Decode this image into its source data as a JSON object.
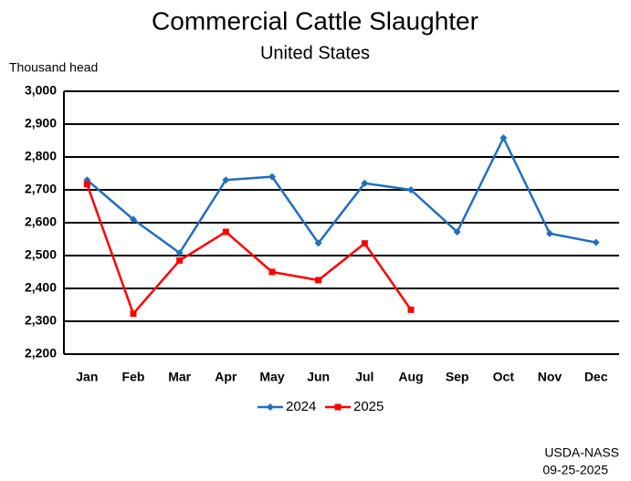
{
  "chart_data": {
    "type": "line",
    "title": "Commercial Cattle Slaughter",
    "subtitle": "United States",
    "y_label": "Thousand head",
    "source": "USDA-NASS",
    "date": "09-25-2025",
    "categories": [
      "Jan",
      "Feb",
      "Mar",
      "Apr",
      "May",
      "Jun",
      "Jul",
      "Aug",
      "Sep",
      "Oct",
      "Nov",
      "Dec"
    ],
    "series": [
      {
        "name": "2024",
        "color": "#1f6fbf",
        "marker": "diamond",
        "values": [
          2730,
          2610,
          2508,
          2730,
          2740,
          2538,
          2720,
          2700,
          2572,
          2858,
          2567,
          2540
        ]
      },
      {
        "name": "2025",
        "color": "#ff0000",
        "marker": "square",
        "values": [
          2717,
          2323,
          2485,
          2572,
          2450,
          2425,
          2537,
          2335,
          null,
          null,
          null,
          null
        ]
      }
    ],
    "ylim": [
      2200,
      3000
    ],
    "yticks": [
      {
        "value": 2200,
        "label": "2,200"
      },
      {
        "value": 2300,
        "label": "2,300"
      },
      {
        "value": 2400,
        "label": "2,400"
      },
      {
        "value": 2500,
        "label": "2,500"
      },
      {
        "value": 2600,
        "label": "2,600"
      },
      {
        "value": 2700,
        "label": "2,700"
      },
      {
        "value": 2800,
        "label": "2,800"
      },
      {
        "value": 2900,
        "label": "2,900"
      },
      {
        "value": 3000,
        "label": "3,000"
      }
    ],
    "grid": true,
    "legend": "bottom"
  }
}
